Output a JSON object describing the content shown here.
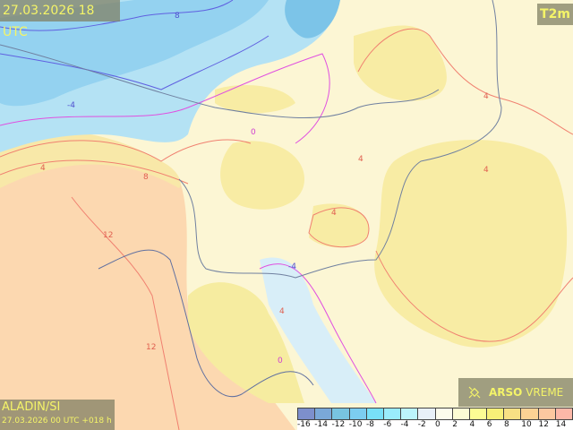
{
  "header": {
    "valid_time": "27.03.2026 18 UTC",
    "parameter": "T2m"
  },
  "model": {
    "name": "ALADIN/SI",
    "run": "27.03.2026 00 UTC +018 h"
  },
  "logo": {
    "brand": "ARSO",
    "product": "VREME",
    "icon": "satellite-icon"
  },
  "legend": {
    "labels": [
      "-16",
      "-14",
      "-12",
      "-10",
      "-8",
      "-6",
      "-4",
      "-2",
      "0",
      "2",
      "4",
      "6",
      "8",
      "10",
      "12",
      "14"
    ],
    "colors": [
      "#7d8fcc",
      "#7aa8d8",
      "#78c4e0",
      "#7ccdf0",
      "#78e0f8",
      "#9aecfc",
      "#bcf4fc",
      "#e8f0f8",
      "#fcfcec",
      "#fcfcd4",
      "#fcfc94",
      "#f8f078",
      "#f8e084",
      "#fcd294",
      "#fcc8a0",
      "#fcb8a8"
    ]
  },
  "contour_labels": [
    "8",
    "4",
    "0",
    "-4",
    "8",
    "12",
    "12",
    "4",
    "4",
    "4",
    "4",
    "0",
    "-4",
    "4"
  ],
  "colors": {
    "panel_text": "#f4f468",
    "isotherm_positive": "#f08070",
    "isotherm_zero": "#e050e0",
    "isotherm_negative": "#6060e0"
  }
}
